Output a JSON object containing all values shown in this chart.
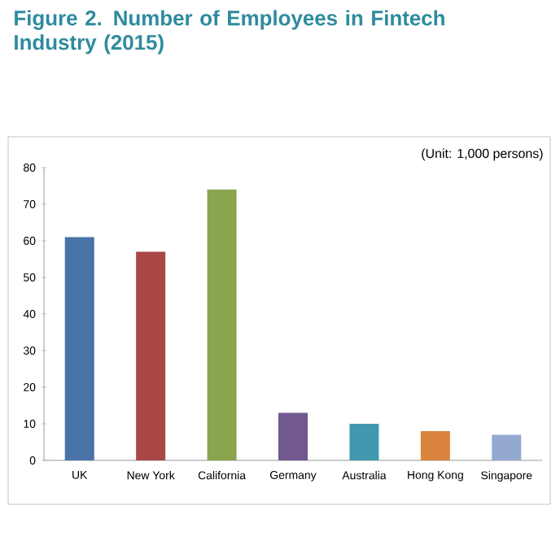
{
  "chart_data": {
    "type": "bar",
    "title": "Figure 2. Number of Employees in Fintech Industry (2015)",
    "subtitle": "(Unit: 1,000 persons)",
    "categories": [
      "UK",
      "New York",
      "California",
      "Germany",
      "Australia",
      "Hong Kong",
      "Singapore"
    ],
    "values": [
      61,
      57,
      74,
      13,
      10,
      8,
      7
    ],
    "colors": [
      "#4a73a8",
      "#aa4643",
      "#89a54e",
      "#71588f",
      "#4198af",
      "#db843d",
      "#93a9cf"
    ],
    "ylim": [
      0,
      80
    ],
    "yticks": [
      0,
      10,
      20,
      30,
      40,
      50,
      60,
      70,
      80
    ],
    "grid": false
  }
}
